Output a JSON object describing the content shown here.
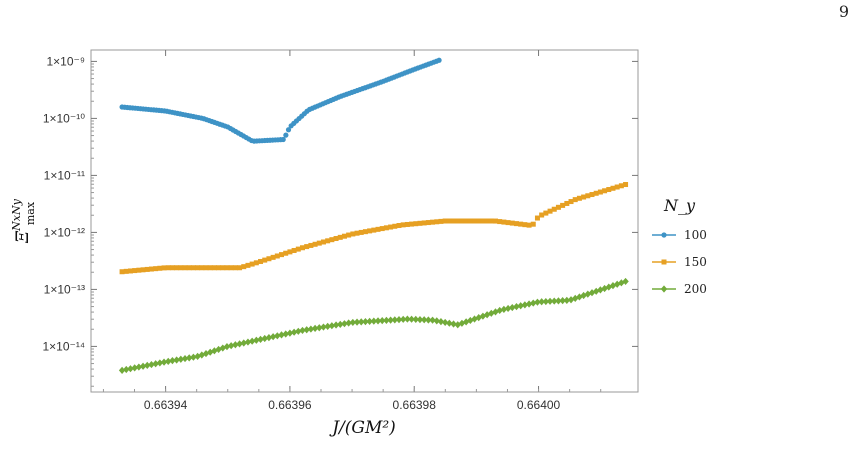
{
  "page_number": "9",
  "chart_data": {
    "type": "scatter",
    "xlabel": "J/(GM²)",
    "ylabel": "Ξ",
    "ylabel_sup": "NxNy",
    "ylabel_sub": "max",
    "y_scale": "log",
    "xlim": [
      0.663928,
      0.664016
    ],
    "ylim_log10": [
      -14.8,
      -8.8
    ],
    "x_ticks": [
      {
        "value": 0.66394,
        "label": "0.66394"
      },
      {
        "value": 0.66396,
        "label": "0.66396"
      },
      {
        "value": 0.66398,
        "label": "0.66398"
      },
      {
        "value": 0.664,
        "label": "0.66400"
      }
    ],
    "y_ticks": [
      {
        "exp": -9,
        "label": "1×10⁻⁹"
      },
      {
        "exp": -10,
        "label": "1×10⁻¹⁰"
      },
      {
        "exp": -11,
        "label": "1×10⁻¹¹"
      },
      {
        "exp": -12,
        "label": "1×10⁻¹²"
      },
      {
        "exp": -13,
        "label": "1×10⁻¹³"
      },
      {
        "exp": -14,
        "label": "1×10⁻¹⁴"
      }
    ],
    "legend": {
      "title": "N_y",
      "placement": "right"
    },
    "series": [
      {
        "name": "100",
        "color": "#3e93c6",
        "marker": "circle",
        "x_range": [
          0.663933,
          0.663984
        ],
        "knots": [
          [
            0.663933,
            -9.8
          ],
          [
            0.66394,
            -9.87
          ],
          [
            0.663946,
            -10.0
          ],
          [
            0.66395,
            -10.15
          ],
          [
            0.663954,
            -10.4
          ],
          [
            0.663959,
            -10.37
          ],
          [
            0.66396,
            -10.15
          ],
          [
            0.663963,
            -9.85
          ],
          [
            0.663968,
            -9.62
          ],
          [
            0.663975,
            -9.35
          ],
          [
            0.66398,
            -9.14
          ],
          [
            0.663984,
            -8.98
          ]
        ]
      },
      {
        "name": "150",
        "color": "#e6a023",
        "marker": "square",
        "x_range": [
          0.663933,
          0.664014
        ],
        "knots": [
          [
            0.663933,
            -12.69
          ],
          [
            0.66394,
            -12.62
          ],
          [
            0.663952,
            -12.62
          ],
          [
            0.663955,
            -12.52
          ],
          [
            0.663962,
            -12.27
          ],
          [
            0.66397,
            -12.03
          ],
          [
            0.663978,
            -11.87
          ],
          [
            0.663985,
            -11.8
          ],
          [
            0.663993,
            -11.8
          ],
          [
            0.663999,
            -11.88
          ],
          [
            0.664,
            -11.72
          ],
          [
            0.664006,
            -11.42
          ],
          [
            0.664014,
            -11.16
          ]
        ]
      },
      {
        "name": "200",
        "color": "#72ab3a",
        "marker": "diamond",
        "x_range": [
          0.663933,
          0.664014
        ],
        "knots": [
          [
            0.663933,
            -14.42
          ],
          [
            0.66394,
            -14.27
          ],
          [
            0.663945,
            -14.18
          ],
          [
            0.66395,
            -14.0
          ],
          [
            0.663962,
            -13.72
          ],
          [
            0.66397,
            -13.58
          ],
          [
            0.663979,
            -13.52
          ],
          [
            0.663983,
            -13.54
          ],
          [
            0.663987,
            -13.62
          ],
          [
            0.663994,
            -13.36
          ],
          [
            0.664,
            -13.22
          ],
          [
            0.664005,
            -13.19
          ],
          [
            0.664014,
            -12.86
          ]
        ]
      }
    ]
  }
}
